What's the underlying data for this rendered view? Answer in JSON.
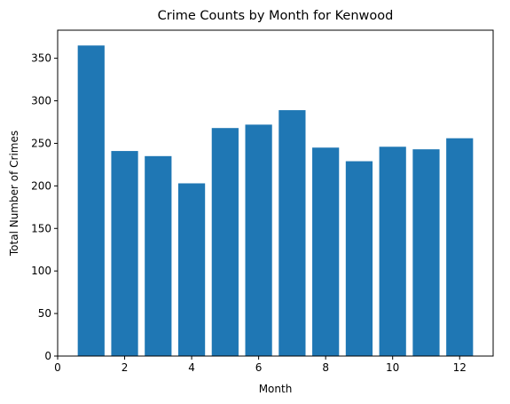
{
  "chart_data": {
    "type": "bar",
    "title": "Crime Counts by Month for Kenwood",
    "xlabel": "Month",
    "ylabel": "Total Number of Crimes",
    "categories": [
      1,
      2,
      3,
      4,
      5,
      6,
      7,
      8,
      9,
      10,
      11,
      12
    ],
    "values": [
      365,
      241,
      235,
      203,
      268,
      272,
      289,
      245,
      229,
      246,
      243,
      256
    ],
    "xlim": [
      0,
      13
    ],
    "ylim": [
      0,
      383
    ],
    "xticks": [
      0,
      2,
      4,
      6,
      8,
      10,
      12
    ],
    "yticks": [
      0,
      50,
      100,
      150,
      200,
      250,
      300,
      350
    ],
    "bar_width": 0.8,
    "grid": false,
    "legend": "none",
    "color": "#1f77b4"
  }
}
